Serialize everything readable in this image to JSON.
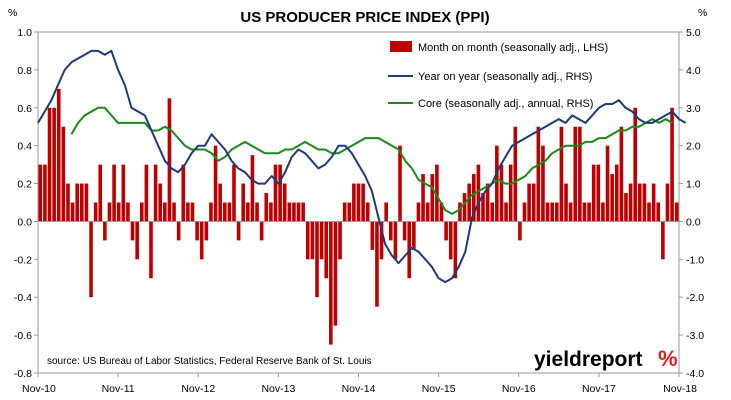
{
  "chart_data": {
    "type": "bar+line",
    "title": "US PRODUCER PRICE INDEX (PPI)",
    "left_axis_unit": "%",
    "right_axis_unit": "%",
    "left_ylim": [
      -0.8,
      1.0
    ],
    "right_ylim": [
      -4.0,
      5.0
    ],
    "left_ticks": [
      "1.0",
      "0.8",
      "0.6",
      "0.4",
      "0.2",
      "0.0",
      "-0.2",
      "-0.4",
      "-0.6",
      "-0.8"
    ],
    "right_ticks": [
      "5.0",
      "4.0",
      "3.0",
      "2.0",
      "1.0",
      "0.0",
      "-1.0",
      "-2.0",
      "-3.0",
      "-4.0"
    ],
    "x_ticks": [
      "Nov-10",
      "Nov-11",
      "Nov-12",
      "Nov-13",
      "Nov-14",
      "Nov-15",
      "Nov-16",
      "Nov-17",
      "Nov-18"
    ],
    "x_range_months": [
      0,
      96
    ],
    "source": "source: US Bureau of Labor Statistics, Federal Reserve Bank of St. Louis",
    "brand": {
      "name": "yieldreport",
      "symbol": "%",
      "accent_color": "#e32119"
    },
    "series": [
      {
        "name": "Month on month (seasonally adj., LHS)",
        "kind": "bar",
        "axis": "left",
        "color": "#c00000",
        "start_month": 0,
        "values": [
          0.3,
          0.3,
          0.6,
          0.6,
          0.7,
          0.5,
          0.2,
          0.1,
          0.2,
          0.2,
          0.2,
          -0.4,
          0.1,
          0.3,
          -0.1,
          0.1,
          0.3,
          0.1,
          0.3,
          0.1,
          -0.1,
          -0.2,
          0.1,
          0.3,
          -0.3,
          0.3,
          0.2,
          0.1,
          0.65,
          0.1,
          -0.1,
          0.3,
          0.1,
          0.1,
          -0.1,
          -0.2,
          -0.1,
          0.1,
          0.4,
          0.2,
          0.1,
          0.1,
          0.3,
          -0.1,
          0.2,
          0.1,
          0.35,
          0.1,
          -0.1,
          0.15,
          0.1,
          0.3,
          0.3,
          0.2,
          0.1,
          0.1,
          0.1,
          0.1,
          -0.2,
          -0.2,
          -0.4,
          -0.2,
          -0.3,
          -0.65,
          -0.55,
          -0.2,
          0.1,
          0.1,
          0.2,
          0.2,
          0.2,
          0.1,
          -0.15,
          -0.45,
          -0.2,
          0.1,
          -0.1,
          -0.2,
          0.4,
          -0.1,
          -0.3,
          -0.15,
          0.1,
          0.25,
          0.1,
          0.25,
          0.3,
          0.1,
          -0.1,
          -0.2,
          -0.3,
          0.1,
          0.15,
          0.2,
          0.25,
          0.3,
          0.15,
          0.2,
          0.1,
          0.4,
          0.3,
          0.1,
          0.3,
          0.5,
          -0.1,
          0.1,
          0.2,
          0.2,
          0.5,
          0.4,
          0.1,
          0.1,
          0.1,
          0.5,
          0.2,
          0.1,
          0.5,
          0.5,
          0.1,
          0.1,
          0.3,
          0.3,
          0.1,
          0.4,
          0.25,
          0.3,
          0.5,
          0.15,
          0.2,
          0.6,
          0.2,
          0.2,
          0.1,
          0.2,
          0.1,
          -0.2,
          0.2,
          0.6,
          0.1
        ]
      },
      {
        "name": "Year on year (seasonally adj., RHS)",
        "kind": "line",
        "axis": "right",
        "color": "#1f3a7a",
        "start_month": 0,
        "values": [
          2.6,
          2.9,
          3.2,
          3.6,
          4.0,
          4.2,
          4.3,
          4.4,
          4.5,
          4.5,
          4.4,
          4.5,
          4.0,
          3.6,
          3.0,
          2.9,
          2.8,
          2.4,
          2.0,
          1.6,
          1.4,
          1.3,
          1.5,
          1.8,
          2.0,
          2.0,
          2.3,
          2.1,
          1.9,
          1.6,
          1.4,
          1.3,
          1.1,
          1.0,
          1.0,
          1.2,
          1.0,
          1.3,
          1.7,
          1.9,
          1.8,
          1.6,
          1.4,
          1.5,
          1.7,
          2.0,
          2.0,
          1.8,
          1.5,
          1.2,
          0.8,
          0.1,
          -0.6,
          -0.9,
          -1.1,
          -0.9,
          -0.7,
          -0.8,
          -1.0,
          -1.2,
          -1.5,
          -1.6,
          -1.5,
          -1.2,
          -0.8,
          0.1,
          0.5,
          0.8,
          1.0,
          1.4,
          1.7,
          2.0,
          2.1,
          2.2,
          2.3,
          2.4,
          2.5,
          2.6,
          2.7,
          2.6,
          2.8,
          2.7,
          2.6,
          2.8,
          3.0,
          3.1,
          3.1,
          3.2,
          3.0,
          2.9,
          2.7,
          2.6,
          2.6,
          2.7,
          2.8,
          2.9,
          2.7,
          2.6
        ]
      },
      {
        "name": "Core (seasonally adj., annual, RHS)",
        "kind": "line",
        "axis": "right",
        "color": "#1a8a1a",
        "start_month": 5,
        "values": [
          2.3,
          2.6,
          2.8,
          2.9,
          3.0,
          3.0,
          2.8,
          2.6,
          2.6,
          2.6,
          2.6,
          2.6,
          2.4,
          2.4,
          2.5,
          2.4,
          2.2,
          2.0,
          1.9,
          1.9,
          1.9,
          1.8,
          1.6,
          1.7,
          1.9,
          2.0,
          2.1,
          2.0,
          1.9,
          1.8,
          1.8,
          1.8,
          1.9,
          1.9,
          2.0,
          2.1,
          2.0,
          1.9,
          1.9,
          1.8,
          1.8,
          1.9,
          2.0,
          2.1,
          2.2,
          2.2,
          2.2,
          2.1,
          2.0,
          1.9,
          1.6,
          1.4,
          1.1,
          1.0,
          0.9,
          0.6,
          0.3,
          0.2,
          0.3,
          0.5,
          0.7,
          0.8,
          0.9,
          1.0,
          1.1,
          1.0,
          1.0,
          1.1,
          1.2,
          1.4,
          1.5,
          1.6,
          1.8,
          1.9,
          2.0,
          2.0,
          2.0,
          2.1,
          2.1,
          2.2,
          2.2,
          2.3,
          2.4,
          2.4,
          2.5,
          2.5,
          2.6,
          2.7,
          2.6,
          2.7,
          2.6
        ]
      }
    ],
    "legend_position": "top-right",
    "grid": false
  }
}
